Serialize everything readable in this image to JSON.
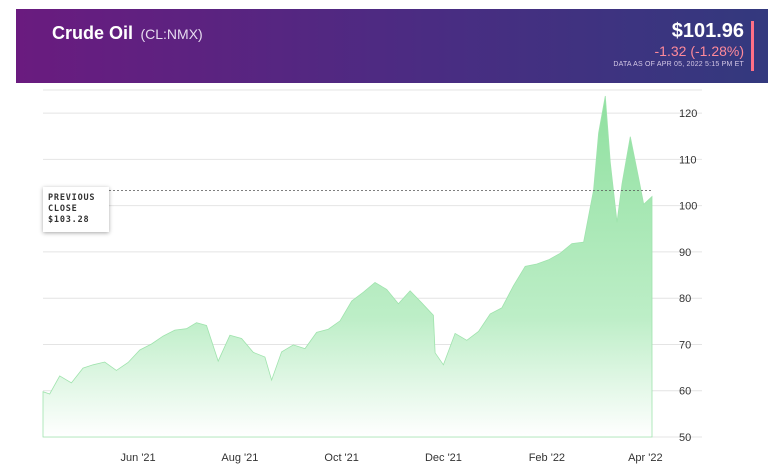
{
  "header": {
    "name": "Crude Oil",
    "symbol": "(CL:NMX)",
    "price": "$101.96",
    "change": "-1.32 (-1.28%)",
    "as_of": "DATA AS OF APR 05, 2022 5:15 PM ET"
  },
  "previous_close": {
    "line1": "PREVIOUS",
    "line2": "CLOSE",
    "value_label": "$103.28",
    "value": 103.28
  },
  "colors": {
    "header_start": "#6a1b7f",
    "header_end": "#33397e",
    "area_top": "#8fe09f",
    "area_bottom": "#ffffff",
    "change_negative": "#ff8a9a"
  },
  "chart_data": {
    "type": "area",
    "ylim": [
      50,
      125
    ],
    "xlim": [
      "2021-04-05",
      "2022-04-05"
    ],
    "y_ticks": [
      50,
      60,
      70,
      80,
      90,
      100,
      110,
      120
    ],
    "x_ticks": [
      {
        "date": "2021-06-01",
        "label": "Jun '21"
      },
      {
        "date": "2021-08-01",
        "label": "Aug '21"
      },
      {
        "date": "2021-10-01",
        "label": "Oct '21"
      },
      {
        "date": "2021-12-01",
        "label": "Dec '21"
      },
      {
        "date": "2022-02-01",
        "label": "Feb '22"
      },
      {
        "date": "2022-04-01",
        "label": "Apr '22"
      }
    ],
    "grid": true,
    "series": [
      {
        "x": [
          "2021-04-05",
          "2021-04-09",
          "2021-04-15",
          "2021-04-22",
          "2021-04-29",
          "2021-05-05",
          "2021-05-12",
          "2021-05-19",
          "2021-05-26",
          "2021-06-02",
          "2021-06-09",
          "2021-06-16",
          "2021-06-23",
          "2021-06-30",
          "2021-07-06",
          "2021-07-12",
          "2021-07-19",
          "2021-07-26",
          "2021-08-02",
          "2021-08-09",
          "2021-08-16",
          "2021-08-20",
          "2021-08-26",
          "2021-09-02",
          "2021-09-09",
          "2021-09-16",
          "2021-09-23",
          "2021-09-30",
          "2021-10-07",
          "2021-10-14",
          "2021-10-21",
          "2021-10-28",
          "2021-11-04",
          "2021-11-11",
          "2021-11-18",
          "2021-11-25",
          "2021-11-26",
          "2021-12-01",
          "2021-12-08",
          "2021-12-15",
          "2021-12-22",
          "2021-12-29",
          "2022-01-05",
          "2022-01-12",
          "2022-01-19",
          "2022-01-26",
          "2022-02-02",
          "2022-02-09",
          "2022-02-16",
          "2022-02-23",
          "2022-03-01",
          "2022-03-04",
          "2022-03-08",
          "2022-03-11",
          "2022-03-15",
          "2022-03-18",
          "2022-03-23",
          "2022-03-28",
          "2022-03-31",
          "2022-04-05"
        ],
        "y": [
          59.8,
          59.3,
          63.2,
          61.7,
          64.9,
          65.6,
          66.2,
          64.4,
          66.1,
          68.8,
          70.1,
          71.8,
          73.1,
          73.4,
          74.7,
          74.1,
          66.4,
          72.0,
          71.3,
          68.3,
          67.3,
          62.3,
          68.4,
          69.9,
          69.1,
          72.6,
          73.3,
          75.1,
          79.4,
          81.3,
          83.4,
          81.9,
          78.8,
          81.6,
          79.0,
          76.3,
          68.2,
          65.6,
          72.4,
          70.9,
          72.8,
          76.6,
          77.9,
          82.7,
          86.9,
          87.4,
          88.3,
          89.7,
          91.8,
          92.1,
          103.4,
          115.7,
          123.7,
          109.3,
          96.4,
          104.7,
          114.9,
          105.9,
          100.3,
          101.96
        ]
      }
    ]
  }
}
